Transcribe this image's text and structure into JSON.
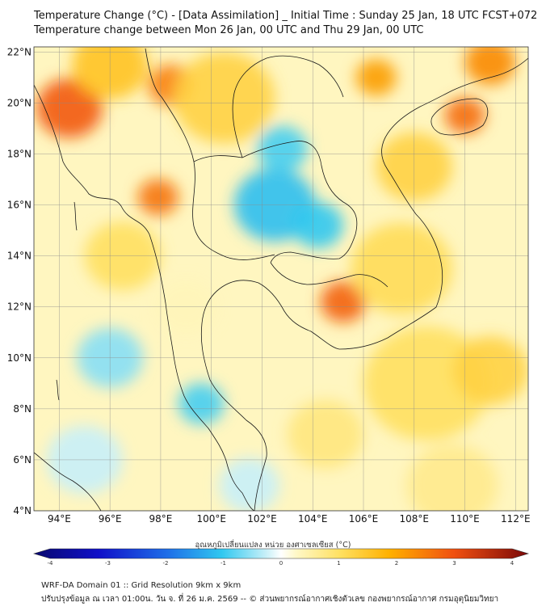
{
  "header": {
    "title_line1": "Temperature Change (°C) - [Data Assimilation] _ Initial Time : Sunday 25 Jan, 18 UTC FCST+072",
    "title_line2": "Temperature change between Mon 26 Jan, 00 UTC and Thu 29 Jan, 00 UTC"
  },
  "map": {
    "lon_labels": [
      "94°E",
      "96°E",
      "98°E",
      "100°E",
      "102°E",
      "104°E",
      "106°E",
      "108°E",
      "110°E",
      "112°E"
    ],
    "lat_labels": [
      "22°N",
      "20°N",
      "18°N",
      "16°N",
      "14°N",
      "12°N",
      "10°N",
      "8°N",
      "6°N",
      "4°N"
    ],
    "lon_range": [
      93,
      112.5
    ],
    "lat_range": [
      4,
      22.2
    ],
    "field_blobs": [
      {
        "lon": 94.4,
        "lat": 19.8,
        "value": 2.9,
        "radius_deg": 1.3
      },
      {
        "lon": 98.4,
        "lat": 20.7,
        "value": 2.5,
        "radius_deg": 0.9
      },
      {
        "lon": 97.9,
        "lat": 16.3,
        "value": 2.6,
        "radius_deg": 0.8
      },
      {
        "lon": 105.2,
        "lat": 12.2,
        "value": 2.8,
        "radius_deg": 0.9
      },
      {
        "lon": 110.0,
        "lat": 19.5,
        "value": 2.7,
        "radius_deg": 0.8
      },
      {
        "lon": 111.0,
        "lat": 21.6,
        "value": 2.4,
        "radius_deg": 1.0
      },
      {
        "lon": 106.5,
        "lat": 21.0,
        "value": 2.2,
        "radius_deg": 0.8
      },
      {
        "lon": 102.5,
        "lat": 16.0,
        "value": -1.1,
        "radius_deg": 1.6
      },
      {
        "lon": 104.2,
        "lat": 15.2,
        "value": -1.0,
        "radius_deg": 1.0
      },
      {
        "lon": 102.8,
        "lat": 18.2,
        "value": -0.9,
        "radius_deg": 1.0
      },
      {
        "lon": 99.6,
        "lat": 8.2,
        "value": -0.9,
        "radius_deg": 0.9
      },
      {
        "lon": 96.0,
        "lat": 10.0,
        "value": -0.6,
        "radius_deg": 1.3
      },
      {
        "lon": 95.0,
        "lat": 6.0,
        "value": -0.3,
        "radius_deg": 1.5
      },
      {
        "lon": 101.5,
        "lat": 5.0,
        "value": -0.3,
        "radius_deg": 1.2
      },
      {
        "lon": 107.5,
        "lat": 13.5,
        "value": 1.1,
        "radius_deg": 2.0
      },
      {
        "lon": 108.5,
        "lat": 9.0,
        "value": 1.0,
        "radius_deg": 2.5
      },
      {
        "lon": 111.0,
        "lat": 9.5,
        "value": 1.3,
        "radius_deg": 1.5
      },
      {
        "lon": 100.5,
        "lat": 20.2,
        "value": 1.3,
        "radius_deg": 2.0
      },
      {
        "lon": 108.0,
        "lat": 17.5,
        "value": 1.3,
        "radius_deg": 1.5
      },
      {
        "lon": 96.5,
        "lat": 14.0,
        "value": 1.0,
        "radius_deg": 1.5
      },
      {
        "lon": 104.5,
        "lat": 7.0,
        "value": 0.8,
        "radius_deg": 1.5
      },
      {
        "lon": 109.5,
        "lat": 5.0,
        "value": 0.7,
        "radius_deg": 1.8
      },
      {
        "lon": 99.0,
        "lat": 12.0,
        "value": 0.4,
        "radius_deg": 1.2
      },
      {
        "lon": 96.0,
        "lat": 21.5,
        "value": 1.6,
        "radius_deg": 1.5
      }
    ]
  },
  "colorbar": {
    "title": "อุณหภูมิเปลี่ยนแปลง หน่วย องศาเซลเซียส (°C)",
    "tick_labels": [
      "-4",
      "-3",
      "-2",
      "-1",
      "0",
      "1",
      "2",
      "3",
      "4"
    ],
    "range": [
      -4,
      4
    ]
  },
  "footer": {
    "line1": "WRF-DA Domain 01 :: Grid Resolution 9km x 9km",
    "line2": "ปรับปรุงข้อมูล ณ เวลา 01:00น. วัน จ. ที่ 26 ม.ค. 2569 -- © ส่วนพยากรณ์อากาศเชิงตัวเลข กองพยากรณ์อากาศ กรมอุตุนิยมวิทยา"
  }
}
